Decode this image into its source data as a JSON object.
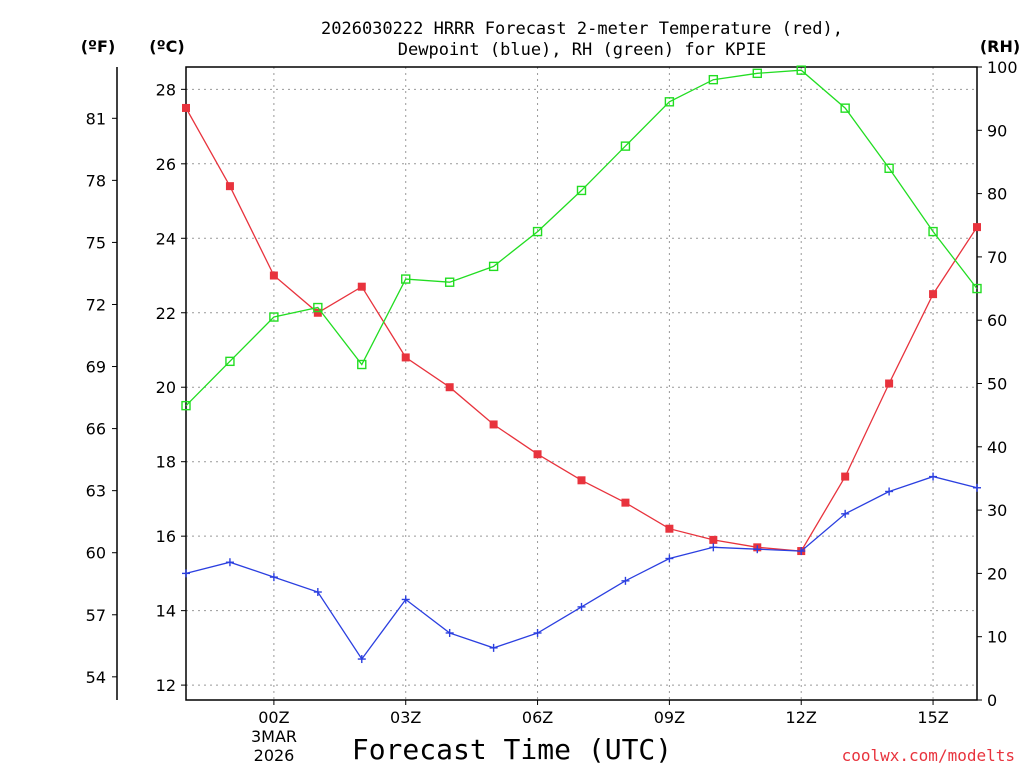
{
  "chart_data": {
    "type": "line",
    "title_line1": "2026030222 HRRR Forecast 2-meter Temperature (red),",
    "title_line2": "Dewpoint (blue), RH (green) for KPIE",
    "xlabel": "Forecast Time (UTC)",
    "x_ticks": [
      "00Z",
      "03Z",
      "06Z",
      "09Z",
      "12Z",
      "15Z"
    ],
    "x_date_label": [
      "3MAR",
      "2026"
    ],
    "left_c_unit": "(ºC)",
    "left_f_unit": "(ºF)",
    "right_unit": "(RH)",
    "c_ticks": [
      "12",
      "14",
      "16",
      "18",
      "20",
      "22",
      "24",
      "26",
      "28"
    ],
    "f_ticks": [
      "54",
      "57",
      "60",
      "63",
      "66",
      "69",
      "72",
      "75",
      "78",
      "81"
    ],
    "rh_ticks": [
      "0",
      "10",
      "20",
      "30",
      "40",
      "50",
      "60",
      "70",
      "80",
      "90",
      "100"
    ],
    "ylim_c": [
      11.6,
      28.6
    ],
    "ylim_rh": [
      0,
      100
    ],
    "hours": [
      -2,
      -1,
      0,
      1,
      2,
      3,
      4,
      5,
      6,
      7,
      8,
      9,
      10,
      11,
      12,
      13,
      14,
      15,
      16
    ],
    "series": [
      {
        "name": "2-meter Temperature",
        "unit": "C",
        "color": "#e8333d",
        "marker": "filled-square",
        "values": [
          27.5,
          25.4,
          23.0,
          22.0,
          22.7,
          20.8,
          20.0,
          19.0,
          18.2,
          17.5,
          16.9,
          16.2,
          15.9,
          15.7,
          15.6,
          17.6,
          20.1,
          22.5,
          24.3
        ]
      },
      {
        "name": "Dewpoint",
        "unit": "C",
        "color": "#2b3fe0",
        "marker": "plus",
        "values": [
          15.0,
          15.3,
          14.9,
          14.5,
          12.7,
          14.3,
          13.4,
          13.0,
          13.4,
          14.1,
          14.8,
          15.4,
          15.7,
          15.65,
          15.6,
          16.6,
          17.2,
          17.6,
          17.3
        ]
      },
      {
        "name": "RH",
        "unit": "%",
        "color": "#22dd22",
        "marker": "open-square",
        "values": [
          46.5,
          53.5,
          60.5,
          62.0,
          53.0,
          66.5,
          66.0,
          68.5,
          74.0,
          80.5,
          87.5,
          94.5,
          98.0,
          99.0,
          99.5,
          93.5,
          84.0,
          74.0,
          65.0
        ]
      }
    ]
  },
  "credit": "coolwx.com/modelts"
}
